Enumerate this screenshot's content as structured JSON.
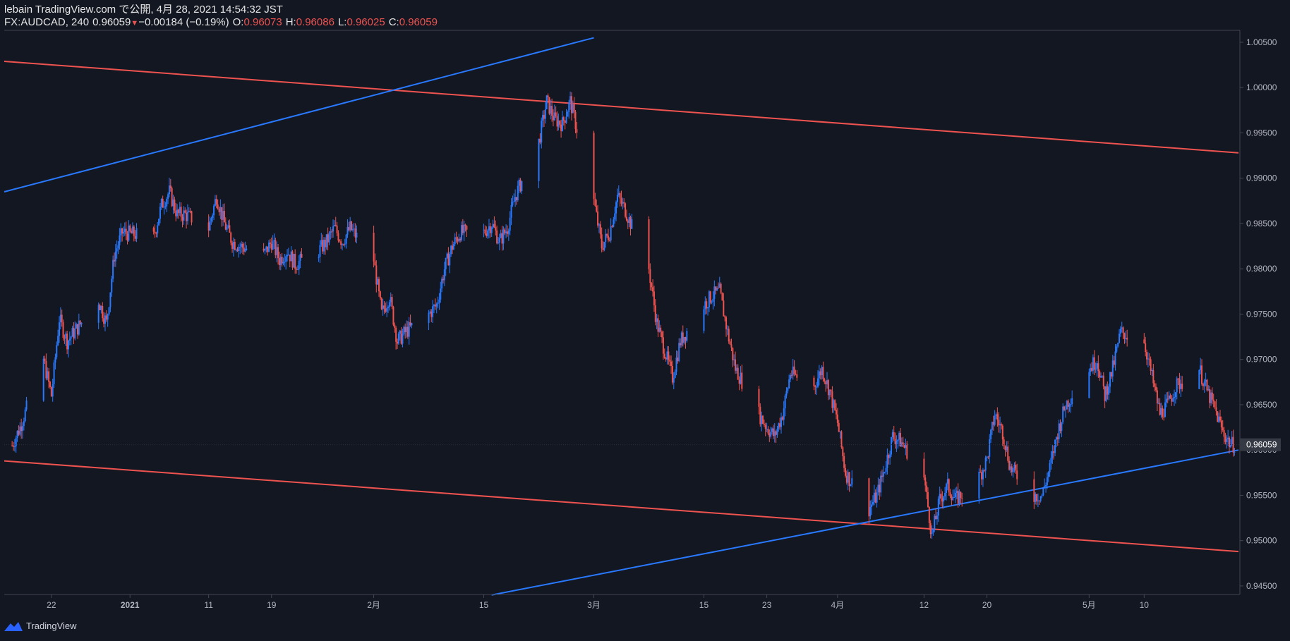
{
  "header": {
    "published_line": "lebain TradingView.com で公開, 4月 28, 2021 14:54:32 JST",
    "symbol": "FX:AUDCAD",
    "interval": "240",
    "last_price": "0.96059",
    "down_arrow": "▼",
    "change": "−0.00184 (−0.19%)",
    "o_label": "O:",
    "o_value": "0.96073",
    "h_label": "H:",
    "h_value": "0.96086",
    "l_label": "L:",
    "l_value": "0.96025",
    "c_label": "C:",
    "c_value": "0.96059"
  },
  "footer": {
    "brand": "TradingView",
    "logo_icon": "tradingview-logo-icon"
  },
  "colors": {
    "background": "#131722",
    "up": "#2979ff",
    "down": "#ef5350",
    "axis_text": "#b2b5be",
    "axis_line": "#434651",
    "price_label_bg": "#363a45"
  },
  "chart_data": {
    "type": "candlestick",
    "title": "",
    "xlabel": "",
    "ylabel": "",
    "ylim": [
      0.94406,
      1.00632
    ],
    "grid": false,
    "current_price": "0.96059",
    "x_ticks": [
      {
        "label": "22",
        "t": "2020-12-22"
      },
      {
        "label": "2021",
        "t": "2021-01-01"
      },
      {
        "label": "11",
        "t": "2021-01-11"
      },
      {
        "label": "19",
        "t": "2021-01-19"
      },
      {
        "label": "2月",
        "t": "2021-02-01"
      },
      {
        "label": "15",
        "t": "2021-02-15"
      },
      {
        "label": "3月",
        "t": "2021-03-01"
      },
      {
        "label": "15",
        "t": "2021-03-15"
      },
      {
        "label": "23",
        "t": "2021-03-23"
      },
      {
        "label": "4月",
        "t": "2021-04-01"
      },
      {
        "label": "12",
        "t": "2021-04-12"
      },
      {
        "label": "20",
        "t": "2021-04-20"
      },
      {
        "label": "5月",
        "t": "2021-05-03"
      },
      {
        "label": "10",
        "t": "2021-05-10"
      }
    ],
    "y_ticks": [
      "1.00500",
      "1.00000",
      "0.99500",
      "0.99000",
      "0.98500",
      "0.98000",
      "0.97500",
      "0.97000",
      "0.96500",
      "0.96000",
      "0.95500",
      "0.95000",
      "0.94500"
    ],
    "close_path": [
      [
        "2020-12-17",
        0.9605
      ],
      [
        "2020-12-18",
        0.9625
      ],
      [
        "2020-12-21",
        0.97
      ],
      [
        "2020-12-22",
        0.966
      ],
      [
        "2020-12-23",
        0.9745
      ],
      [
        "2020-12-24",
        0.972
      ],
      [
        "2020-12-28",
        0.9765
      ],
      [
        "2020-12-29",
        0.974
      ],
      [
        "2020-12-30",
        0.9815
      ],
      [
        "2020-12-31",
        0.984
      ],
      [
        "2021-01-04",
        0.9835
      ],
      [
        "2021-01-05",
        0.987
      ],
      [
        "2021-01-06",
        0.9885
      ],
      [
        "2021-01-07",
        0.986
      ],
      [
        "2021-01-08",
        0.986
      ],
      [
        "2021-01-11",
        0.9845
      ],
      [
        "2021-01-12",
        0.988
      ],
      [
        "2021-01-13",
        0.985
      ],
      [
        "2021-01-14",
        0.983
      ],
      [
        "2021-01-15",
        0.9825
      ],
      [
        "2021-01-18",
        0.9815
      ],
      [
        "2021-01-19",
        0.983
      ],
      [
        "2021-01-20",
        0.981
      ],
      [
        "2021-01-21",
        0.982
      ],
      [
        "2021-01-22",
        0.9805
      ],
      [
        "2021-01-25",
        0.982
      ],
      [
        "2021-01-26",
        0.983
      ],
      [
        "2021-01-27",
        0.9845
      ],
      [
        "2021-01-28",
        0.983
      ],
      [
        "2021-01-29",
        0.9845
      ],
      [
        "2021-02-01",
        0.981
      ],
      [
        "2021-02-02",
        0.975
      ],
      [
        "2021-02-03",
        0.977
      ],
      [
        "2021-02-04",
        0.972
      ],
      [
        "2021-02-05",
        0.973
      ],
      [
        "2021-02-08",
        0.975
      ],
      [
        "2021-02-09",
        0.976
      ],
      [
        "2021-02-10",
        0.98
      ],
      [
        "2021-02-11",
        0.9825
      ],
      [
        "2021-02-12",
        0.984
      ],
      [
        "2021-02-15",
        0.984
      ],
      [
        "2021-02-16",
        0.985
      ],
      [
        "2021-02-17",
        0.983
      ],
      [
        "2021-02-18",
        0.9845
      ],
      [
        "2021-02-19",
        0.988
      ],
      [
        "2021-02-22",
        0.994
      ],
      [
        "2021-02-23",
        0.9985
      ],
      [
        "2021-02-24",
        0.9965
      ],
      [
        "2021-02-25",
        0.996
      ],
      [
        "2021-02-26",
        0.9985
      ],
      [
        "2021-03-01",
        0.9875
      ],
      [
        "2021-03-02",
        0.9825
      ],
      [
        "2021-03-03",
        0.984
      ],
      [
        "2021-03-04",
        0.988
      ],
      [
        "2021-03-05",
        0.9865
      ],
      [
        "2021-03-08",
        0.98
      ],
      [
        "2021-03-09",
        0.974
      ],
      [
        "2021-03-10",
        0.971
      ],
      [
        "2021-03-11",
        0.968
      ],
      [
        "2021-03-12",
        0.972
      ],
      [
        "2021-03-15",
        0.976
      ],
      [
        "2021-03-16",
        0.977
      ],
      [
        "2021-03-17",
        0.9775
      ],
      [
        "2021-03-18",
        0.973
      ],
      [
        "2021-03-19",
        0.969
      ],
      [
        "2021-03-22",
        0.964
      ],
      [
        "2021-03-23",
        0.9625
      ],
      [
        "2021-03-24",
        0.9615
      ],
      [
        "2021-03-25",
        0.964
      ],
      [
        "2021-03-26",
        0.9685
      ],
      [
        "2021-03-29",
        0.967
      ],
      [
        "2021-03-30",
        0.969
      ],
      [
        "2021-03-31",
        0.9665
      ],
      [
        "2021-04-01",
        0.963
      ],
      [
        "2021-04-02",
        0.9575
      ],
      [
        "2021-04-05",
        0.9535
      ],
      [
        "2021-04-06",
        0.955
      ],
      [
        "2021-04-07",
        0.958
      ],
      [
        "2021-04-08",
        0.9615
      ],
      [
        "2021-04-09",
        0.961
      ],
      [
        "2021-04-12",
        0.957
      ],
      [
        "2021-04-13",
        0.9505
      ],
      [
        "2021-04-14",
        0.9545
      ],
      [
        "2021-04-15",
        0.956
      ],
      [
        "2021-04-16",
        0.9545
      ],
      [
        "2021-04-19",
        0.957
      ],
      [
        "2021-04-20",
        0.959
      ],
      [
        "2021-04-21",
        0.964
      ],
      [
        "2021-04-22",
        0.962
      ],
      [
        "2021-04-23",
        0.958
      ],
      [
        "2021-04-26",
        0.955
      ],
      [
        "2021-04-27",
        0.955
      ],
      [
        "2021-04-28",
        0.958
      ],
      [
        "2021-04-29",
        0.962
      ],
      [
        "2021-04-30",
        0.965
      ],
      [
        "2021-05-03",
        0.969
      ],
      [
        "2021-05-04",
        0.97
      ],
      [
        "2021-05-05",
        0.966
      ],
      [
        "2021-05-06",
        0.969
      ],
      [
        "2021-05-07",
        0.973
      ],
      [
        "2021-05-10",
        0.972
      ],
      [
        "2021-05-11",
        0.968
      ],
      [
        "2021-05-12",
        0.964
      ],
      [
        "2021-05-13",
        0.965
      ],
      [
        "2021-05-14",
        0.967
      ],
      [
        "2021-05-17",
        0.969
      ],
      [
        "2021-05-18",
        0.9665
      ],
      [
        "2021-05-19",
        0.9645
      ],
      [
        "2021-05-20",
        0.962
      ],
      [
        "2021-05-21",
        0.9606
      ]
    ],
    "trendlines": [
      {
        "name": "",
        "color": "#ef5350",
        "from": [
          "2020-12-16",
          1.0029
        ],
        "to": [
          "2021-05-22",
          0.9928
        ]
      },
      {
        "name": "",
        "color": "#2979ff",
        "from": [
          "2020-12-16",
          0.9885
        ],
        "to": [
          "2021-03-01",
          1.0055
        ]
      },
      {
        "name": "",
        "color": "#ef5350",
        "from": [
          "2020-12-16",
          0.9588
        ],
        "to": [
          "2021-05-22",
          0.9488
        ]
      },
      {
        "name": "",
        "color": "#2979ff",
        "from": [
          "2021-02-16",
          0.944
        ],
        "to": [
          "2021-05-22",
          0.96
        ]
      }
    ]
  }
}
